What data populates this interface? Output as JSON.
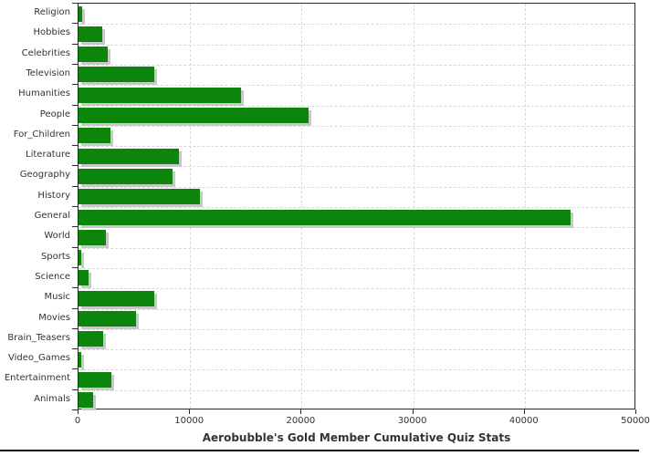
{
  "chart_data": {
    "type": "bar",
    "orientation": "horizontal",
    "title": "Aerobubble's Gold Member Cumulative Quiz Stats",
    "categories": [
      "Religion",
      "Hobbies",
      "Celebrities",
      "Television",
      "Humanities",
      "People",
      "For_Children",
      "Literature",
      "Geography",
      "History",
      "General",
      "World",
      "Sports",
      "Science",
      "Music",
      "Movies",
      "Brain_Teasers",
      "Video_Games",
      "Entertainment",
      "Animals"
    ],
    "values": [
      330,
      2100,
      2650,
      6800,
      14600,
      20600,
      2870,
      9000,
      8400,
      10900,
      44100,
      2430,
      220,
      880,
      6760,
      5180,
      2230,
      270,
      2940,
      1310
    ],
    "xlabel": "",
    "ylabel": "",
    "xlim": [
      0,
      50000
    ],
    "x_ticks": [
      0,
      10000,
      20000,
      30000,
      40000,
      50000
    ],
    "x_tick_labels": [
      "0",
      "10000",
      "20000",
      "30000",
      "40000",
      "50000"
    ],
    "grid": "on",
    "legend": "none",
    "colors": {
      "bar": "#0b850b",
      "bar_shadow": "#c8c8c8",
      "gridline": "#d9d9d9",
      "axis": "#2b2b2b",
      "text": "#333333",
      "background": "#ffffff",
      "bottom_rule": "#111111"
    }
  }
}
